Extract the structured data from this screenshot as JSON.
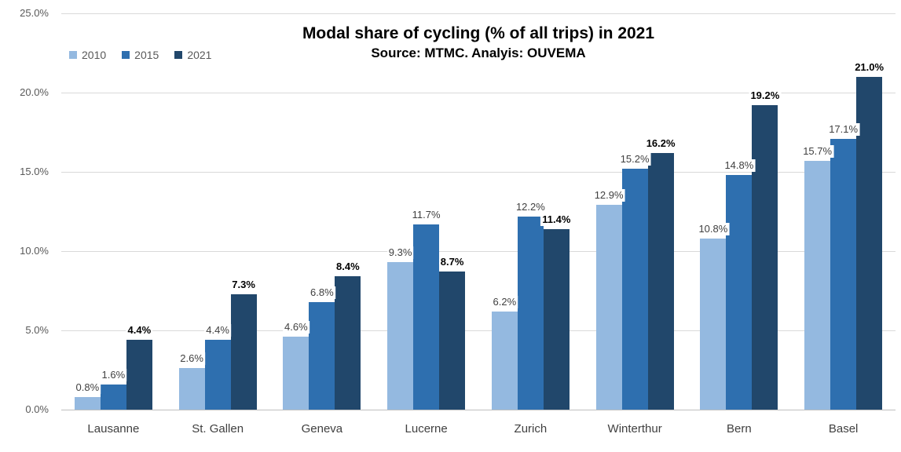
{
  "chart_data": {
    "type": "bar",
    "title": "Modal share of cycling (% of all trips) in 2021",
    "subtitle": "Source: MTMC. Analyis: OUVEMA",
    "categories": [
      "Lausanne",
      "St. Gallen",
      "Geneva",
      "Lucerne",
      "Zurich",
      "Winterthur",
      "Bern",
      "Basel"
    ],
    "series": [
      {
        "name": "2010",
        "color": "#94B9E0",
        "values": [
          0.8,
          2.6,
          4.6,
          9.3,
          6.2,
          12.9,
          10.8,
          15.7
        ]
      },
      {
        "name": "2015",
        "color": "#2E6FAF",
        "values": [
          1.6,
          4.4,
          6.8,
          11.7,
          12.2,
          15.2,
          14.8,
          17.1
        ]
      },
      {
        "name": "2021",
        "color": "#21476B",
        "values": [
          4.4,
          7.3,
          8.4,
          8.7,
          11.4,
          16.2,
          19.2,
          21.0
        ]
      }
    ],
    "data_labels": {
      "2010": [
        "0.8%",
        "2.6%",
        "4.6%",
        "9.3%",
        "6.2%",
        "12.9%",
        "10.8%",
        "15.7%"
      ],
      "2015": [
        "1.6%",
        "4.4%",
        "6.8%",
        "11.7%",
        "12.2%",
        "15.2%",
        "14.8%",
        "17.1%"
      ],
      "2021": [
        "4.4%",
        "7.3%",
        "8.4%",
        "8.7%",
        "11.4%",
        "16.2%",
        "19.2%",
        "21.0%"
      ]
    },
    "xlabel": "",
    "ylabel": "",
    "ylim": [
      0,
      25
    ],
    "ytick_step": 5,
    "ytick_labels": [
      "0.0%",
      "5.0%",
      "10.0%",
      "15.0%",
      "20.0%",
      "25.0%"
    ],
    "grid": true,
    "legend_position": "top-left"
  },
  "colors": {
    "background": "#ffffff",
    "gridline": "#D9D9D9",
    "axis_line": "#BFBFBF",
    "ytick_label": "#595959",
    "category_label": "#404040",
    "data_label": "#404040",
    "data_label_2021": "#000000",
    "legend_label": "#595959"
  }
}
